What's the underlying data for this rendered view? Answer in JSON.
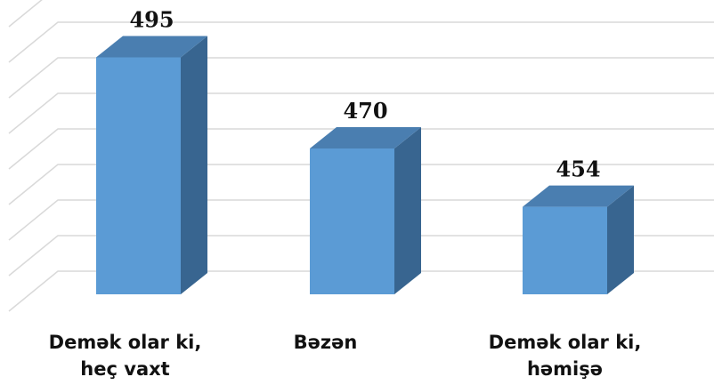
{
  "chart_data": {
    "type": "bar3d",
    "categories": [
      "Demək olar ki, heç vaxt",
      "Bəzən",
      "Demək olar ki, həmişə"
    ],
    "values": [
      495,
      470,
      454
    ],
    "color": "#5b9bd5",
    "ylim": [
      430,
      510
    ],
    "yticks": [
      430,
      440,
      450,
      460,
      470,
      480,
      490,
      500,
      510
    ],
    "grid": true
  }
}
